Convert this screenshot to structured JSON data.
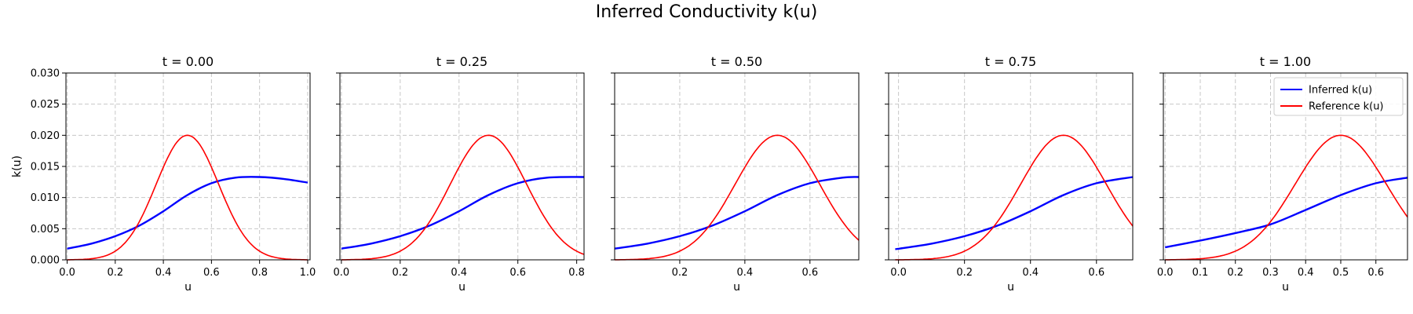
{
  "figure": {
    "title": "Inferred Conductivity k(u)"
  },
  "colors": {
    "inferred": "#0000ff",
    "reference": "#ff0000",
    "grid": "#c8c8c8"
  },
  "chart_data": [
    {
      "type": "line",
      "title": "t = 0.00",
      "xlabel": "u",
      "ylabel": "k(u)",
      "xlim": [
        -0.005,
        1.01
      ],
      "ylim": [
        0,
        0.03
      ],
      "xticks": [
        0.0,
        0.2,
        0.4,
        0.6,
        0.8,
        1.0
      ],
      "xtick_labels": [
        "0.0",
        "0.2",
        "0.4",
        "0.6",
        "0.8",
        "1.0"
      ],
      "yticks": [
        0,
        0.005,
        0.01,
        0.015,
        0.02,
        0.025,
        0.03
      ],
      "ytick_labels": [
        "0.000",
        "0.005",
        "0.010",
        "0.015",
        "0.020",
        "0.025",
        "0.030"
      ],
      "grid": true,
      "show_yticklabels": true,
      "legend": null,
      "series": [
        {
          "name": "Inferred k(u)",
          "color": "#0000ff",
          "x": [
            0,
            0.1,
            0.2,
            0.3,
            0.4,
            0.5,
            0.6,
            0.7,
            0.8,
            0.9,
            1.0
          ],
          "y": [
            0.0018,
            0.0026,
            0.0038,
            0.0055,
            0.0078,
            0.0104,
            0.0123,
            0.0132,
            0.0133,
            0.013,
            0.0124
          ]
        },
        {
          "name": "Reference k(u)",
          "color": "#ff0000",
          "gaussian": {
            "amp": 0.02,
            "mu": 0.5,
            "sigma": 0.13,
            "xmin": 0,
            "xmax": 1.0
          }
        }
      ]
    },
    {
      "type": "line",
      "title": "t = 0.25",
      "xlabel": "u",
      "ylabel": "",
      "xlim": [
        -0.005,
        0.825
      ],
      "ylim": [
        0,
        0.03
      ],
      "xticks": [
        0.0,
        0.2,
        0.4,
        0.6,
        0.8
      ],
      "xtick_labels": [
        "0.0",
        "0.2",
        "0.4",
        "0.6",
        "0.8"
      ],
      "yticks": [
        0,
        0.005,
        0.01,
        0.015,
        0.02,
        0.025,
        0.03
      ],
      "ytick_labels": [],
      "grid": true,
      "show_yticklabels": false,
      "legend": null,
      "series": [
        {
          "name": "Inferred k(u)",
          "color": "#0000ff",
          "x": [
            0,
            0.1,
            0.2,
            0.3,
            0.4,
            0.5,
            0.6,
            0.7,
            0.825
          ],
          "y": [
            0.0018,
            0.0026,
            0.0038,
            0.0055,
            0.0078,
            0.0104,
            0.0123,
            0.0132,
            0.0133
          ]
        },
        {
          "name": "Reference k(u)",
          "color": "#ff0000",
          "gaussian": {
            "amp": 0.02,
            "mu": 0.5,
            "sigma": 0.13,
            "xmin": 0,
            "xmax": 0.825
          }
        }
      ]
    },
    {
      "type": "line",
      "title": "t = 0.50",
      "xlabel": "u",
      "ylabel": "",
      "xlim": [
        0,
        0.75
      ],
      "ylim": [
        0,
        0.03
      ],
      "xticks": [
        0.2,
        0.4,
        0.6
      ],
      "xtick_labels": [
        "0.2",
        "0.4",
        "0.6"
      ],
      "yticks": [
        0,
        0.005,
        0.01,
        0.015,
        0.02,
        0.025,
        0.03
      ],
      "ytick_labels": [],
      "grid": true,
      "show_yticklabels": false,
      "legend": null,
      "series": [
        {
          "name": "Inferred k(u)",
          "color": "#0000ff",
          "x": [
            0,
            0.1,
            0.2,
            0.3,
            0.4,
            0.5,
            0.6,
            0.7,
            0.75
          ],
          "y": [
            0.0018,
            0.0026,
            0.0038,
            0.0055,
            0.0078,
            0.0104,
            0.0123,
            0.0132,
            0.0133
          ]
        },
        {
          "name": "Reference k(u)",
          "color": "#ff0000",
          "gaussian": {
            "amp": 0.02,
            "mu": 0.5,
            "sigma": 0.13,
            "xmin": 0,
            "xmax": 0.75
          }
        }
      ]
    },
    {
      "type": "line",
      "title": "t = 0.75",
      "xlabel": "u",
      "ylabel": "",
      "xlim": [
        -0.03,
        0.71
      ],
      "ylim": [
        0,
        0.03
      ],
      "xticks": [
        0.0,
        0.2,
        0.4,
        0.6
      ],
      "xtick_labels": [
        "0.0",
        "0.2",
        "0.4",
        "0.6"
      ],
      "yticks": [
        0,
        0.005,
        0.01,
        0.015,
        0.02,
        0.025,
        0.03
      ],
      "ytick_labels": [],
      "grid": true,
      "show_yticklabels": false,
      "legend": null,
      "series": [
        {
          "name": "Inferred k(u)",
          "color": "#0000ff",
          "x": [
            -0.01,
            0.1,
            0.2,
            0.3,
            0.4,
            0.5,
            0.6,
            0.71
          ],
          "y": [
            0.0017,
            0.0026,
            0.0038,
            0.0055,
            0.0078,
            0.0104,
            0.0123,
            0.0133
          ]
        },
        {
          "name": "Reference k(u)",
          "color": "#ff0000",
          "gaussian": {
            "amp": 0.02,
            "mu": 0.5,
            "sigma": 0.13,
            "xmin": -0.01,
            "xmax": 0.71
          }
        }
      ]
    },
    {
      "type": "line",
      "title": "t = 1.00",
      "xlabel": "u",
      "ylabel": "",
      "xlim": [
        -0.005,
        0.69
      ],
      "ylim": [
        0,
        0.03
      ],
      "xticks": [
        0.0,
        0.1,
        0.2,
        0.3,
        0.4,
        0.5,
        0.6
      ],
      "xtick_labels": [
        "0.0",
        "0.1",
        "0.2",
        "0.3",
        "0.4",
        "0.5",
        "0.6"
      ],
      "yticks": [
        0,
        0.005,
        0.01,
        0.015,
        0.02,
        0.025,
        0.03
      ],
      "ytick_labels": [],
      "grid": true,
      "show_yticklabels": false,
      "legend": {
        "position": "top-right",
        "entries": [
          "Inferred k(u)",
          "Reference k(u)"
        ]
      },
      "series": [
        {
          "name": "Inferred k(u)",
          "color": "#0000ff",
          "x": [
            0,
            0.1,
            0.2,
            0.3,
            0.4,
            0.5,
            0.6,
            0.69
          ],
          "y": [
            0.002,
            0.0031,
            0.0043,
            0.0057,
            0.008,
            0.0104,
            0.0123,
            0.0132
          ]
        },
        {
          "name": "Reference k(u)",
          "color": "#ff0000",
          "gaussian": {
            "amp": 0.02,
            "mu": 0.5,
            "sigma": 0.13,
            "xmin": 0,
            "xmax": 0.69
          }
        }
      ]
    }
  ]
}
